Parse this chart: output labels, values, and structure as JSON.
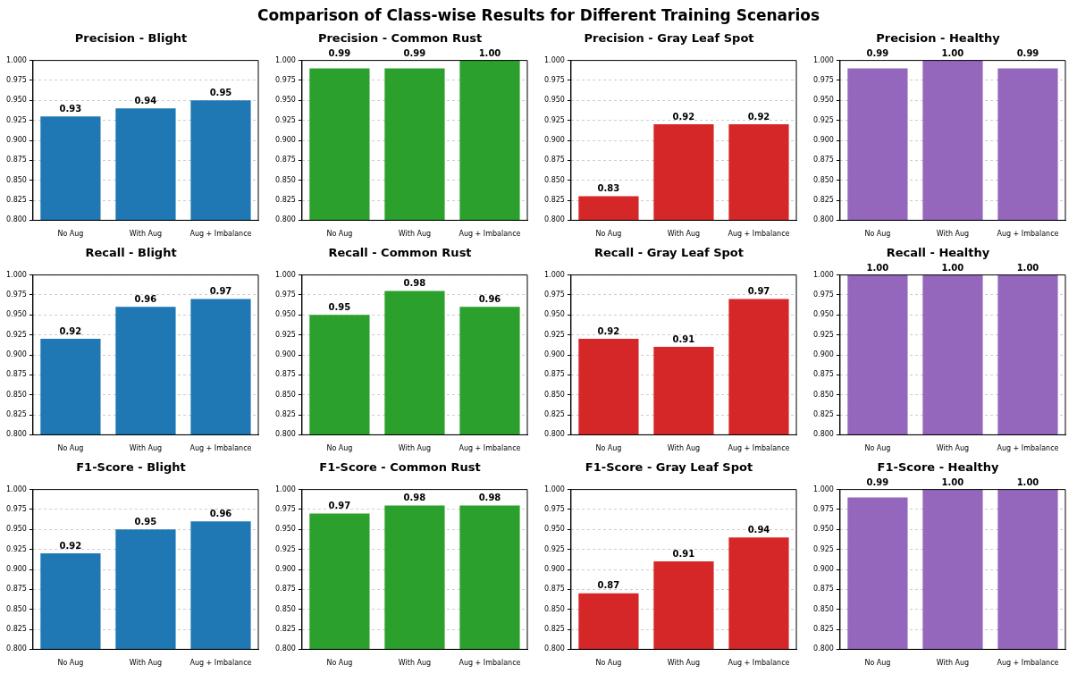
{
  "chart_data": [
    {
      "type": "bar",
      "title": "Precision - Blight",
      "annotations": [
        "Comparison of Class-wise Results for Different Training Scenarios"
      ],
      "categories": [
        "No Aug",
        "With Aug",
        "Aug + Imbalance"
      ],
      "values": [
        0.93,
        0.94,
        0.95
      ],
      "value_labels": [
        "0.93",
        "0.94",
        "0.95"
      ],
      "color": "#1f77b4",
      "ylim": [
        0.8,
        1.0
      ],
      "yticks": [
        {
          "value": 0.8,
          "label": "0.800"
        },
        {
          "value": 0.825,
          "label": "0.825"
        },
        {
          "value": 0.85,
          "label": "0.850"
        },
        {
          "value": 0.875,
          "label": "0.875"
        },
        {
          "value": 0.9,
          "label": "0.900"
        },
        {
          "value": 0.925,
          "label": "0.925"
        },
        {
          "value": 0.95,
          "label": "0.950"
        },
        {
          "value": 0.975,
          "label": "0.975"
        },
        {
          "value": 1.0,
          "label": "1.000"
        }
      ],
      "grid": "y"
    },
    {
      "type": "bar",
      "title": "Precision - Common Rust",
      "categories": [
        "No Aug",
        "With Aug",
        "Aug + Imbalance"
      ],
      "values": [
        0.99,
        0.99,
        1.0
      ],
      "value_labels": [
        "0.99",
        "0.99",
        "1.00"
      ],
      "color": "#2ca02c",
      "ylim": [
        0.8,
        1.0
      ],
      "yticks": [
        {
          "value": 0.8,
          "label": "0.800"
        },
        {
          "value": 0.825,
          "label": "0.825"
        },
        {
          "value": 0.85,
          "label": "0.850"
        },
        {
          "value": 0.875,
          "label": "0.875"
        },
        {
          "value": 0.9,
          "label": "0.900"
        },
        {
          "value": 0.925,
          "label": "0.925"
        },
        {
          "value": 0.95,
          "label": "0.950"
        },
        {
          "value": 0.975,
          "label": "0.975"
        },
        {
          "value": 1.0,
          "label": "1.000"
        }
      ],
      "grid": "y"
    },
    {
      "type": "bar",
      "title": "Precision - Gray Leaf Spot",
      "categories": [
        "No Aug",
        "With Aug",
        "Aug + Imbalance"
      ],
      "values": [
        0.83,
        0.92,
        0.92
      ],
      "value_labels": [
        "0.83",
        "0.92",
        "0.92"
      ],
      "color": "#d62728",
      "ylim": [
        0.8,
        1.0
      ],
      "yticks": [
        {
          "value": 0.8,
          "label": "0.800"
        },
        {
          "value": 0.825,
          "label": "0.825"
        },
        {
          "value": 0.85,
          "label": "0.850"
        },
        {
          "value": 0.875,
          "label": "0.875"
        },
        {
          "value": 0.9,
          "label": "0.900"
        },
        {
          "value": 0.925,
          "label": "0.925"
        },
        {
          "value": 0.95,
          "label": "0.950"
        },
        {
          "value": 0.975,
          "label": "0.975"
        },
        {
          "value": 1.0,
          "label": "1.000"
        }
      ],
      "grid": "y"
    },
    {
      "type": "bar",
      "title": "Precision - Healthy",
      "categories": [
        "No Aug",
        "With Aug",
        "Aug + Imbalance"
      ],
      "values": [
        0.99,
        1.0,
        0.99
      ],
      "value_labels": [
        "0.99",
        "1.00",
        "0.99"
      ],
      "color": "#9467bd",
      "ylim": [
        0.8,
        1.0
      ],
      "yticks": [
        {
          "value": 0.8,
          "label": "0.800"
        },
        {
          "value": 0.825,
          "label": "0.825"
        },
        {
          "value": 0.85,
          "label": "0.850"
        },
        {
          "value": 0.875,
          "label": "0.875"
        },
        {
          "value": 0.9,
          "label": "0.900"
        },
        {
          "value": 0.925,
          "label": "0.925"
        },
        {
          "value": 0.95,
          "label": "0.950"
        },
        {
          "value": 0.975,
          "label": "0.975"
        },
        {
          "value": 1.0,
          "label": "1.000"
        }
      ],
      "grid": "y"
    },
    {
      "type": "bar",
      "title": "Recall - Blight",
      "categories": [
        "No Aug",
        "With Aug",
        "Aug + Imbalance"
      ],
      "values": [
        0.92,
        0.96,
        0.97
      ],
      "value_labels": [
        "0.92",
        "0.96",
        "0.97"
      ],
      "color": "#1f77b4",
      "ylim": [
        0.8,
        1.0
      ],
      "yticks": [
        {
          "value": 0.8,
          "label": "0.800"
        },
        {
          "value": 0.825,
          "label": "0.825"
        },
        {
          "value": 0.85,
          "label": "0.850"
        },
        {
          "value": 0.875,
          "label": "0.875"
        },
        {
          "value": 0.9,
          "label": "0.900"
        },
        {
          "value": 0.925,
          "label": "0.925"
        },
        {
          "value": 0.95,
          "label": "0.950"
        },
        {
          "value": 0.975,
          "label": "0.975"
        },
        {
          "value": 1.0,
          "label": "1.000"
        }
      ],
      "grid": "y"
    },
    {
      "type": "bar",
      "title": "Recall - Common Rust",
      "categories": [
        "No Aug",
        "With Aug",
        "Aug + Imbalance"
      ],
      "values": [
        0.95,
        0.98,
        0.96
      ],
      "value_labels": [
        "0.95",
        "0.98",
        "0.96"
      ],
      "color": "#2ca02c",
      "ylim": [
        0.8,
        1.0
      ],
      "yticks": [
        {
          "value": 0.8,
          "label": "0.800"
        },
        {
          "value": 0.825,
          "label": "0.825"
        },
        {
          "value": 0.85,
          "label": "0.850"
        },
        {
          "value": 0.875,
          "label": "0.875"
        },
        {
          "value": 0.9,
          "label": "0.900"
        },
        {
          "value": 0.925,
          "label": "0.925"
        },
        {
          "value": 0.95,
          "label": "0.950"
        },
        {
          "value": 0.975,
          "label": "0.975"
        },
        {
          "value": 1.0,
          "label": "1.000"
        }
      ],
      "grid": "y"
    },
    {
      "type": "bar",
      "title": "Recall - Gray Leaf Spot",
      "categories": [
        "No Aug",
        "With Aug",
        "Aug + Imbalance"
      ],
      "values": [
        0.92,
        0.91,
        0.97
      ],
      "value_labels": [
        "0.92",
        "0.91",
        "0.97"
      ],
      "color": "#d62728",
      "ylim": [
        0.8,
        1.0
      ],
      "yticks": [
        {
          "value": 0.8,
          "label": "0.800"
        },
        {
          "value": 0.825,
          "label": "0.825"
        },
        {
          "value": 0.85,
          "label": "0.850"
        },
        {
          "value": 0.875,
          "label": "0.875"
        },
        {
          "value": 0.9,
          "label": "0.900"
        },
        {
          "value": 0.925,
          "label": "0.925"
        },
        {
          "value": 0.95,
          "label": "0.950"
        },
        {
          "value": 0.975,
          "label": "0.975"
        },
        {
          "value": 1.0,
          "label": "1.000"
        }
      ],
      "grid": "y"
    },
    {
      "type": "bar",
      "title": "Recall - Healthy",
      "categories": [
        "No Aug",
        "With Aug",
        "Aug + Imbalance"
      ],
      "values": [
        1.0,
        1.0,
        1.0
      ],
      "value_labels": [
        "1.00",
        "1.00",
        "1.00"
      ],
      "color": "#9467bd",
      "ylim": [
        0.8,
        1.0
      ],
      "yticks": [
        {
          "value": 0.8,
          "label": "0.800"
        },
        {
          "value": 0.825,
          "label": "0.825"
        },
        {
          "value": 0.85,
          "label": "0.850"
        },
        {
          "value": 0.875,
          "label": "0.875"
        },
        {
          "value": 0.9,
          "label": "0.900"
        },
        {
          "value": 0.925,
          "label": "0.925"
        },
        {
          "value": 0.95,
          "label": "0.950"
        },
        {
          "value": 0.975,
          "label": "0.975"
        },
        {
          "value": 1.0,
          "label": "1.000"
        }
      ],
      "grid": "y"
    },
    {
      "type": "bar",
      "title": "F1-Score - Blight",
      "categories": [
        "No Aug",
        "With Aug",
        "Aug + Imbalance"
      ],
      "values": [
        0.92,
        0.95,
        0.96
      ],
      "value_labels": [
        "0.92",
        "0.95",
        "0.96"
      ],
      "color": "#1f77b4",
      "ylim": [
        0.8,
        1.0
      ],
      "yticks": [
        {
          "value": 0.8,
          "label": "0.800"
        },
        {
          "value": 0.825,
          "label": "0.825"
        },
        {
          "value": 0.85,
          "label": "0.850"
        },
        {
          "value": 0.875,
          "label": "0.875"
        },
        {
          "value": 0.9,
          "label": "0.900"
        },
        {
          "value": 0.925,
          "label": "0.925"
        },
        {
          "value": 0.95,
          "label": "0.950"
        },
        {
          "value": 0.975,
          "label": "0.975"
        },
        {
          "value": 1.0,
          "label": "1.000"
        }
      ],
      "grid": "y"
    },
    {
      "type": "bar",
      "title": "F1-Score - Common Rust",
      "categories": [
        "No Aug",
        "With Aug",
        "Aug + Imbalance"
      ],
      "values": [
        0.97,
        0.98,
        0.98
      ],
      "value_labels": [
        "0.97",
        "0.98",
        "0.98"
      ],
      "color": "#2ca02c",
      "ylim": [
        0.8,
        1.0
      ],
      "yticks": [
        {
          "value": 0.8,
          "label": "0.800"
        },
        {
          "value": 0.825,
          "label": "0.825"
        },
        {
          "value": 0.85,
          "label": "0.850"
        },
        {
          "value": 0.875,
          "label": "0.875"
        },
        {
          "value": 0.9,
          "label": "0.900"
        },
        {
          "value": 0.925,
          "label": "0.925"
        },
        {
          "value": 0.95,
          "label": "0.950"
        },
        {
          "value": 0.975,
          "label": "0.975"
        },
        {
          "value": 1.0,
          "label": "1.000"
        }
      ],
      "grid": "y"
    },
    {
      "type": "bar",
      "title": "F1-Score - Gray Leaf Spot",
      "categories": [
        "No Aug",
        "With Aug",
        "Aug + Imbalance"
      ],
      "values": [
        0.87,
        0.91,
        0.94
      ],
      "value_labels": [
        "0.87",
        "0.91",
        "0.94"
      ],
      "color": "#d62728",
      "ylim": [
        0.8,
        1.0
      ],
      "yticks": [
        {
          "value": 0.8,
          "label": "0.800"
        },
        {
          "value": 0.825,
          "label": "0.825"
        },
        {
          "value": 0.85,
          "label": "0.850"
        },
        {
          "value": 0.875,
          "label": "0.875"
        },
        {
          "value": 0.9,
          "label": "0.900"
        },
        {
          "value": 0.925,
          "label": "0.925"
        },
        {
          "value": 0.95,
          "label": "0.950"
        },
        {
          "value": 0.975,
          "label": "0.975"
        },
        {
          "value": 1.0,
          "label": "1.000"
        }
      ],
      "grid": "y"
    },
    {
      "type": "bar",
      "title": "F1-Score - Healthy",
      "categories": [
        "No Aug",
        "With Aug",
        "Aug + Imbalance"
      ],
      "values": [
        0.99,
        1.0,
        1.0
      ],
      "value_labels": [
        "0.99",
        "1.00",
        "1.00"
      ],
      "color": "#9467bd",
      "ylim": [
        0.8,
        1.0
      ],
      "yticks": [
        {
          "value": 0.8,
          "label": "0.800"
        },
        {
          "value": 0.825,
          "label": "0.825"
        },
        {
          "value": 0.85,
          "label": "0.850"
        },
        {
          "value": 0.875,
          "label": "0.875"
        },
        {
          "value": 0.9,
          "label": "0.900"
        },
        {
          "value": 0.925,
          "label": "0.925"
        },
        {
          "value": 0.95,
          "label": "0.950"
        },
        {
          "value": 0.975,
          "label": "0.975"
        },
        {
          "value": 1.0,
          "label": "1.000"
        }
      ],
      "grid": "y"
    }
  ]
}
